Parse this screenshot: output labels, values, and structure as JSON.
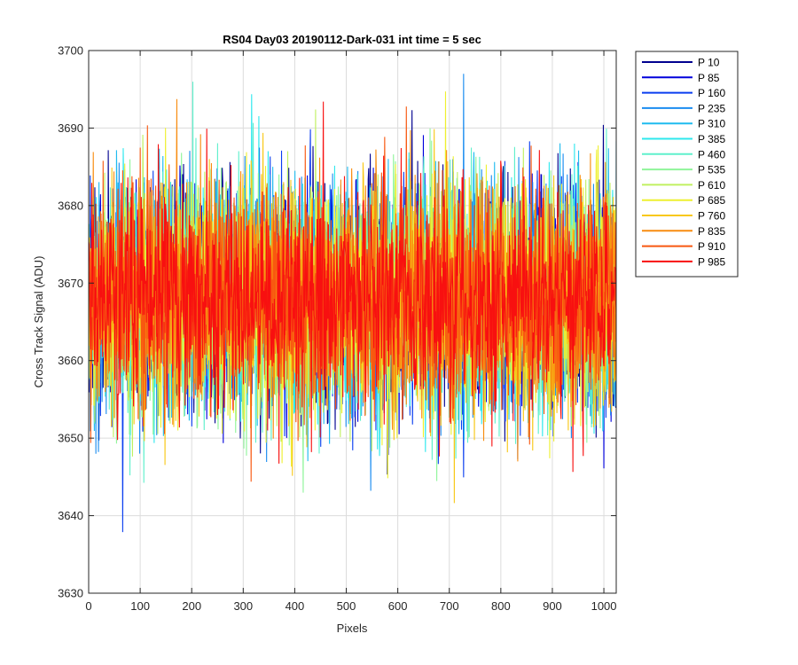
{
  "chart_data": {
    "type": "line",
    "title": "RS04 Day03 20190112-Dark-031 int time = 5 sec",
    "xlabel": "Pixels",
    "ylabel": "Cross Track Signal (ADU)",
    "xlim": [
      0,
      1024
    ],
    "ylim": [
      3630,
      3700
    ],
    "xticks": [
      0,
      100,
      200,
      300,
      400,
      500,
      600,
      700,
      800,
      900,
      1000
    ],
    "yticks": [
      3630,
      3640,
      3650,
      3660,
      3670,
      3680,
      3690,
      3700
    ],
    "grid": true,
    "legend_position": "outside-top-right",
    "noise_model": {
      "mean": 3668,
      "std": 7.2,
      "min": 3635,
      "max": 3697,
      "points_per_series": 1024
    },
    "series": [
      {
        "name": "P 10",
        "color": "#00008f"
      },
      {
        "name": "P 85",
        "color": "#0000dc"
      },
      {
        "name": "P 160",
        "color": "#0a3ef0"
      },
      {
        "name": "P 235",
        "color": "#1a8cf0"
      },
      {
        "name": "P 310",
        "color": "#1fbbef"
      },
      {
        "name": "P 385",
        "color": "#2ee8ee"
      },
      {
        "name": "P 460",
        "color": "#5ff0cc"
      },
      {
        "name": "P 535",
        "color": "#8ff59a"
      },
      {
        "name": "P 610",
        "color": "#c0f060"
      },
      {
        "name": "P 685",
        "color": "#eef030"
      },
      {
        "name": "P 760",
        "color": "#f8c818"
      },
      {
        "name": "P 835",
        "color": "#f88c10"
      },
      {
        "name": "P 910",
        "color": "#f85810"
      },
      {
        "name": "P 985",
        "color": "#f81010"
      }
    ]
  }
}
